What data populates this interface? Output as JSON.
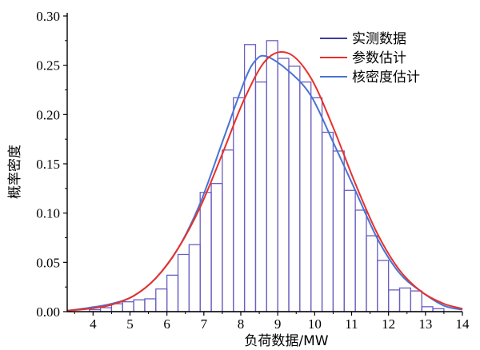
{
  "chart_data": {
    "type": "bar",
    "title": "",
    "xlabel": "负荷数据/MW",
    "ylabel": "概率密度",
    "xlim": [
      3.3,
      14
    ],
    "ylim": [
      0,
      0.3
    ],
    "x_ticks": [
      "4",
      "5",
      "6",
      "7",
      "8",
      "9",
      "10",
      "11",
      "12",
      "13",
      "14"
    ],
    "y_ticks": [
      "0.00",
      "0.05",
      "0.10",
      "0.15",
      "0.20",
      "0.25",
      "0.30"
    ],
    "histogram_bin_edges": [
      3.3,
      3.6,
      3.9,
      4.2,
      4.5,
      4.8,
      5.1,
      5.4,
      5.7,
      6.0,
      6.3,
      6.6,
      6.9,
      7.2,
      7.5,
      7.8,
      8.1,
      8.4,
      8.7,
      9.0,
      9.3,
      9.6,
      9.9,
      10.2,
      10.5,
      10.8,
      11.1,
      11.4,
      11.7,
      12.0,
      12.3,
      12.6,
      12.9,
      13.2,
      13.5,
      13.8
    ],
    "histogram_values": [
      0.0,
      0.0,
      0.002,
      0.004,
      0.008,
      0.01,
      0.012,
      0.013,
      0.023,
      0.037,
      0.058,
      0.068,
      0.121,
      0.13,
      0.164,
      0.217,
      0.271,
      0.233,
      0.275,
      0.257,
      0.249,
      0.233,
      0.217,
      0.182,
      0.163,
      0.123,
      0.103,
      0.077,
      0.052,
      0.022,
      0.024,
      0.021,
      0.005,
      0.003,
      0.0
    ],
    "legend": {
      "placement": "top-right",
      "entries": [
        {
          "label": "实测数据",
          "color": "#3d3d9e"
        },
        {
          "label": "参数估计",
          "color": "#e8302a"
        },
        {
          "label": "核密度估计",
          "color": "#4a73d4"
        }
      ]
    },
    "series": [
      {
        "name": "参数估计",
        "color": "#e8302a",
        "x": [
          3.3,
          3.9,
          4.5,
          5.1,
          5.7,
          6.3,
          6.9,
          7.5,
          8.1,
          8.7,
          9.3,
          9.9,
          10.5,
          11.1,
          11.7,
          12.3,
          12.9,
          13.5,
          14.0
        ],
        "y": [
          0.001,
          0.003,
          0.007,
          0.016,
          0.034,
          0.064,
          0.106,
          0.16,
          0.216,
          0.256,
          0.262,
          0.237,
          0.187,
          0.13,
          0.079,
          0.042,
          0.02,
          0.008,
          0.003
        ]
      },
      {
        "name": "核密度估计",
        "color": "#4a73d4",
        "x": [
          3.3,
          3.9,
          4.5,
          5.1,
          5.7,
          6.3,
          6.9,
          7.5,
          8.1,
          8.4,
          8.7,
          9.3,
          9.9,
          10.5,
          11.1,
          11.7,
          12.3,
          12.9,
          13.5,
          14.0
        ],
        "y": [
          0.001,
          0.004,
          0.008,
          0.016,
          0.034,
          0.064,
          0.11,
          0.172,
          0.234,
          0.255,
          0.259,
          0.244,
          0.219,
          0.172,
          0.123,
          0.074,
          0.039,
          0.02,
          0.006,
          0.002
        ]
      }
    ],
    "grid": false
  }
}
